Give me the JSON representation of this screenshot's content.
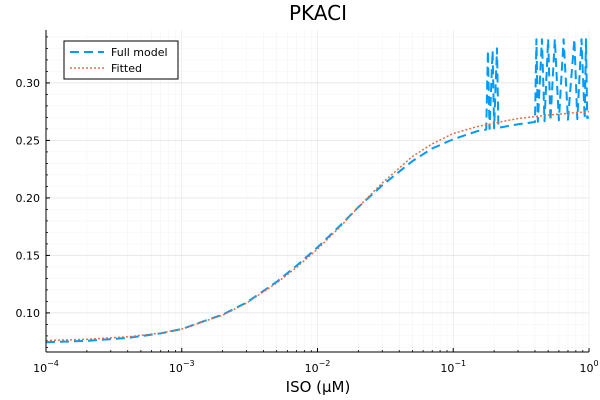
{
  "chart_data": {
    "type": "line",
    "title": "PKACI",
    "xlabel": "ISO (μM)",
    "ylabel": "",
    "xscale": "log",
    "xlim": [
      0.0001,
      1
    ],
    "ylim": [
      0.066,
      0.346
    ],
    "grid": true,
    "legend_position": "top-left",
    "x_ticks": [
      {
        "value": 0.0001,
        "base": "10",
        "exp": "−4"
      },
      {
        "value": 0.001,
        "base": "10",
        "exp": "−3"
      },
      {
        "value": 0.01,
        "base": "10",
        "exp": "−2"
      },
      {
        "value": 0.1,
        "base": "10",
        "exp": "−1"
      },
      {
        "value": 1,
        "base": "10",
        "exp": "0"
      }
    ],
    "y_ticks": [
      {
        "value": 0.1,
        "label": "0.10"
      },
      {
        "value": 0.15,
        "label": "0.15"
      },
      {
        "value": 0.2,
        "label": "0.20"
      },
      {
        "value": 0.25,
        "label": "0.25"
      },
      {
        "value": 0.3,
        "label": "0.30"
      }
    ],
    "series": [
      {
        "name": "Full model",
        "color": "#009af9",
        "dash": "dashed",
        "points": [
          [
            0.0001,
            0.0745
          ],
          [
            0.0002,
            0.0757
          ],
          [
            0.0004,
            0.0782
          ],
          [
            0.0007,
            0.0822
          ],
          [
            0.001,
            0.086
          ],
          [
            0.002,
            0.0985
          ],
          [
            0.003,
            0.109
          ],
          [
            0.005,
            0.127
          ],
          [
            0.007,
            0.141
          ],
          [
            0.01,
            0.157
          ],
          [
            0.015,
            0.177
          ],
          [
            0.02,
            0.192
          ],
          [
            0.03,
            0.211
          ],
          [
            0.05,
            0.232
          ],
          [
            0.07,
            0.243
          ],
          [
            0.1,
            0.251
          ],
          [
            0.15,
            0.258
          ],
          [
            0.175,
            0.2595
          ],
          [
            0.18,
            0.328
          ],
          [
            0.185,
            0.26
          ],
          [
            0.195,
            0.328
          ],
          [
            0.2,
            0.2605
          ],
          [
            0.21,
            0.33
          ],
          [
            0.215,
            0.261
          ],
          [
            0.22,
            0.2612
          ],
          [
            0.3,
            0.264
          ],
          [
            0.4,
            0.266
          ],
          [
            0.41,
            0.338
          ],
          [
            0.42,
            0.2662
          ],
          [
            0.45,
            0.338
          ],
          [
            0.47,
            0.2666
          ],
          [
            0.5,
            0.338
          ],
          [
            0.52,
            0.267
          ],
          [
            0.56,
            0.338
          ],
          [
            0.6,
            0.2675
          ],
          [
            0.65,
            0.338
          ],
          [
            0.7,
            0.268
          ],
          [
            0.78,
            0.338
          ],
          [
            0.82,
            0.2685
          ],
          [
            0.88,
            0.338
          ],
          [
            0.93,
            0.269
          ],
          [
            0.95,
            0.338
          ],
          [
            0.97,
            0.2695
          ],
          [
            1.0,
            0.27
          ]
        ]
      },
      {
        "name": "Fitted",
        "color": "#e26f46",
        "dash": "dotted",
        "points": [
          [
            0.0001,
            0.076
          ],
          [
            0.0002,
            0.077
          ],
          [
            0.0004,
            0.0792
          ],
          [
            0.0007,
            0.0825
          ],
          [
            0.001,
            0.086
          ],
          [
            0.002,
            0.098
          ],
          [
            0.003,
            0.1085
          ],
          [
            0.005,
            0.126
          ],
          [
            0.007,
            0.1395
          ],
          [
            0.01,
            0.1555
          ],
          [
            0.015,
            0.176
          ],
          [
            0.02,
            0.192
          ],
          [
            0.03,
            0.213
          ],
          [
            0.05,
            0.236
          ],
          [
            0.07,
            0.247
          ],
          [
            0.1,
            0.256
          ],
          [
            0.15,
            0.262
          ],
          [
            0.2,
            0.265
          ],
          [
            0.3,
            0.269
          ],
          [
            0.5,
            0.272
          ],
          [
            0.7,
            0.2735
          ],
          [
            1.0,
            0.275
          ]
        ]
      }
    ]
  }
}
